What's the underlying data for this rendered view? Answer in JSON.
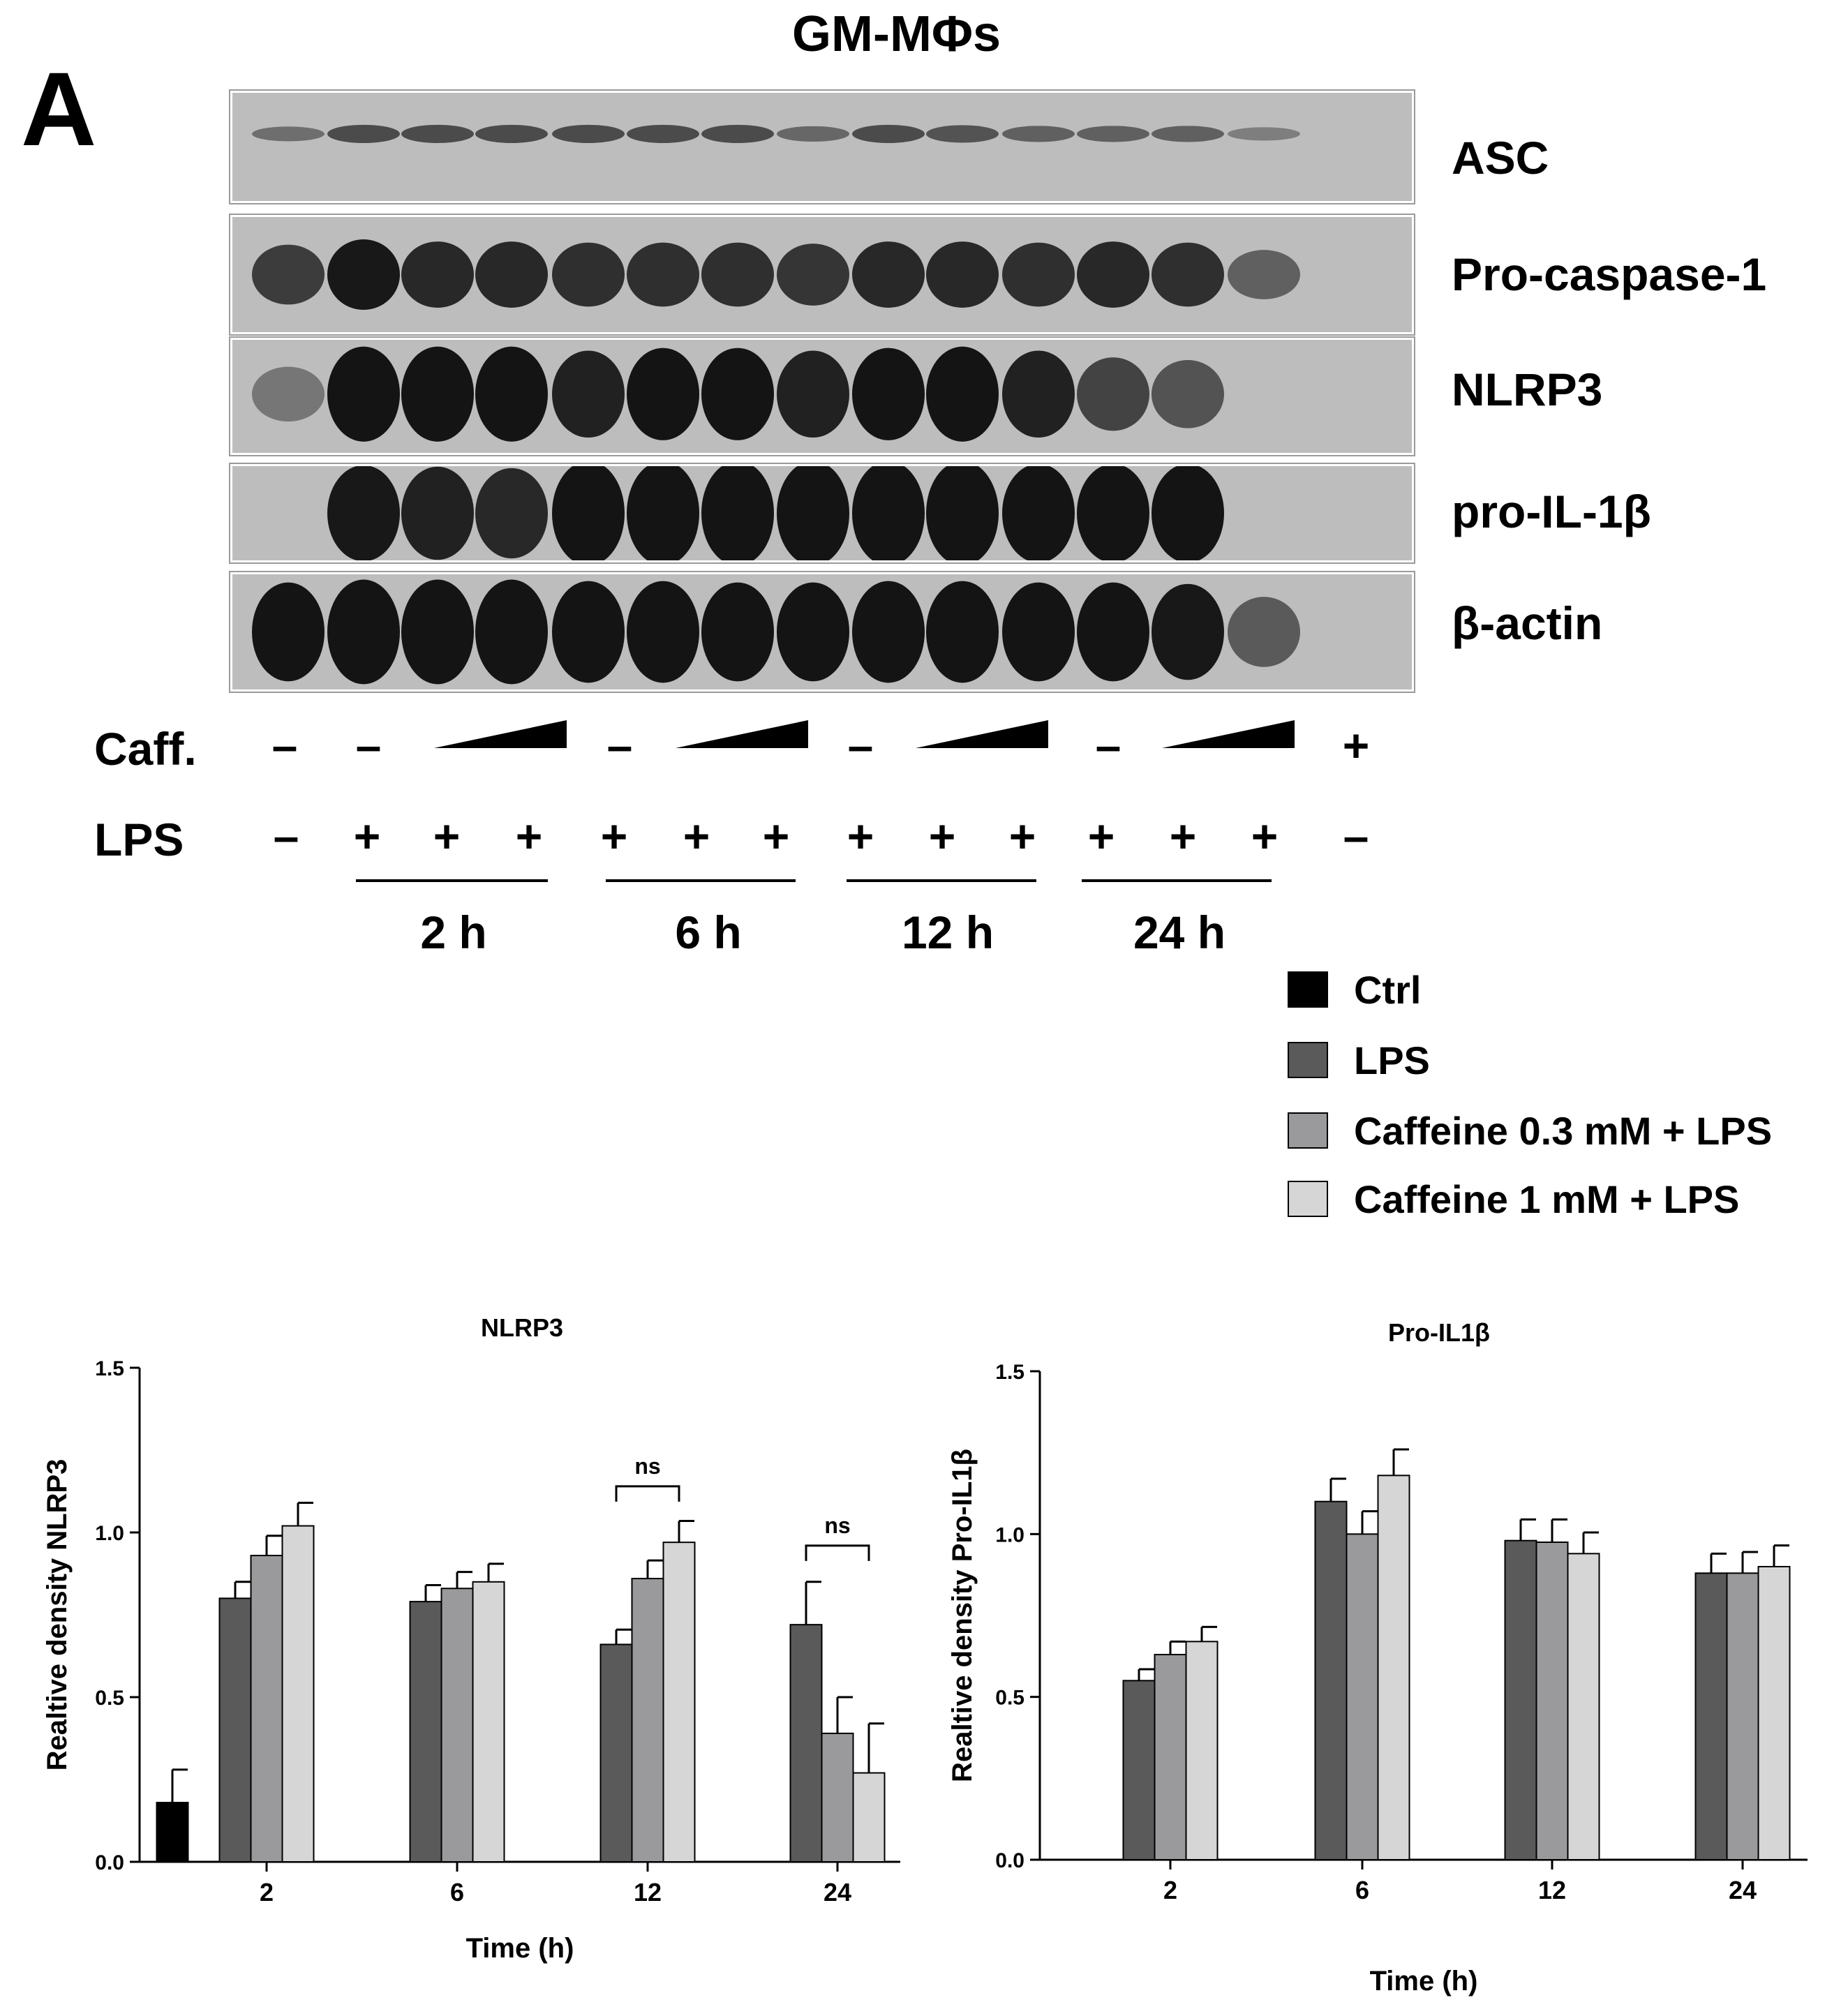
{
  "panel_letter": "A",
  "figure_title": "GM-MΦs",
  "blot": {
    "labels": [
      "ASC",
      "Pro-caspase-1",
      "NLRP3",
      "pro-IL-1β",
      "β-actin"
    ],
    "row_labels": {
      "caff": "Caff.",
      "lps": "LPS"
    },
    "caff_signs": [
      "-",
      "-",
      "ramp",
      "-",
      "ramp",
      "-",
      "ramp",
      "-",
      "ramp",
      "+"
    ],
    "lps_signs": [
      "-",
      "+",
      "+",
      "+",
      "+",
      "+",
      "+",
      "+",
      "+",
      "+",
      "+",
      "+",
      "+",
      "-"
    ],
    "time_labels": [
      "2 h",
      "6 h",
      "12 h",
      "24 h"
    ]
  },
  "legend": {
    "items": [
      {
        "label": "Ctrl",
        "color": "#000000"
      },
      {
        "label": "LPS",
        "color": "#5a5a5a"
      },
      {
        "label": "Caffeine 0.3 mM + LPS",
        "color": "#9a9a9c"
      },
      {
        "label": "Caffeine 1 mM + LPS",
        "color": "#d6d6d6"
      }
    ]
  },
  "chart_data": [
    {
      "type": "bar",
      "title": "NLRP3",
      "xlabel": "Time (h)",
      "ylabel": "Realtive density NLRP3",
      "ylim": [
        0,
        1.5
      ],
      "yticks": [
        "0.0",
        "0.5",
        "1.0",
        "1.5"
      ],
      "categories": [
        "2",
        "6",
        "12",
        "24"
      ],
      "ctrl": {
        "name": "Ctrl",
        "value": 0.18,
        "error": 0.1
      },
      "series": [
        {
          "name": "LPS",
          "values": [
            0.8,
            0.79,
            0.66,
            0.72
          ],
          "errors": [
            0.05,
            0.05,
            0.045,
            0.13
          ]
        },
        {
          "name": "Caffeine 0.3 mM + LPS",
          "values": [
            0.93,
            0.83,
            0.86,
            0.39
          ],
          "errors": [
            0.06,
            0.05,
            0.055,
            0.11
          ]
        },
        {
          "name": "Caffeine 1 mM + LPS",
          "values": [
            1.02,
            0.85,
            0.97,
            0.27
          ],
          "errors": [
            0.07,
            0.055,
            0.065,
            0.15
          ]
        }
      ],
      "annotations": [
        {
          "text": "ns",
          "category": "12"
        },
        {
          "text": "ns",
          "category": "24"
        }
      ]
    },
    {
      "type": "bar",
      "title": "Pro-IL1β",
      "xlabel": "Time (h)",
      "ylabel": "Realtive density Pro-IL1β",
      "ylim": [
        0,
        1.5
      ],
      "yticks": [
        "0.0",
        "0.5",
        "1.0",
        "1.5"
      ],
      "categories": [
        "2",
        "6",
        "12",
        "24"
      ],
      "series": [
        {
          "name": "LPS",
          "values": [
            0.55,
            1.1,
            0.98,
            0.88
          ],
          "errors": [
            0.035,
            0.07,
            0.065,
            0.06
          ]
        },
        {
          "name": "Caffeine 0.3 mM + LPS",
          "values": [
            0.63,
            1.0,
            0.975,
            0.88
          ],
          "errors": [
            0.04,
            0.07,
            0.07,
            0.065
          ]
        },
        {
          "name": "Caffeine 1 mM + LPS",
          "values": [
            0.67,
            1.18,
            0.94,
            0.9
          ],
          "errors": [
            0.045,
            0.08,
            0.065,
            0.065
          ]
        }
      ]
    }
  ]
}
